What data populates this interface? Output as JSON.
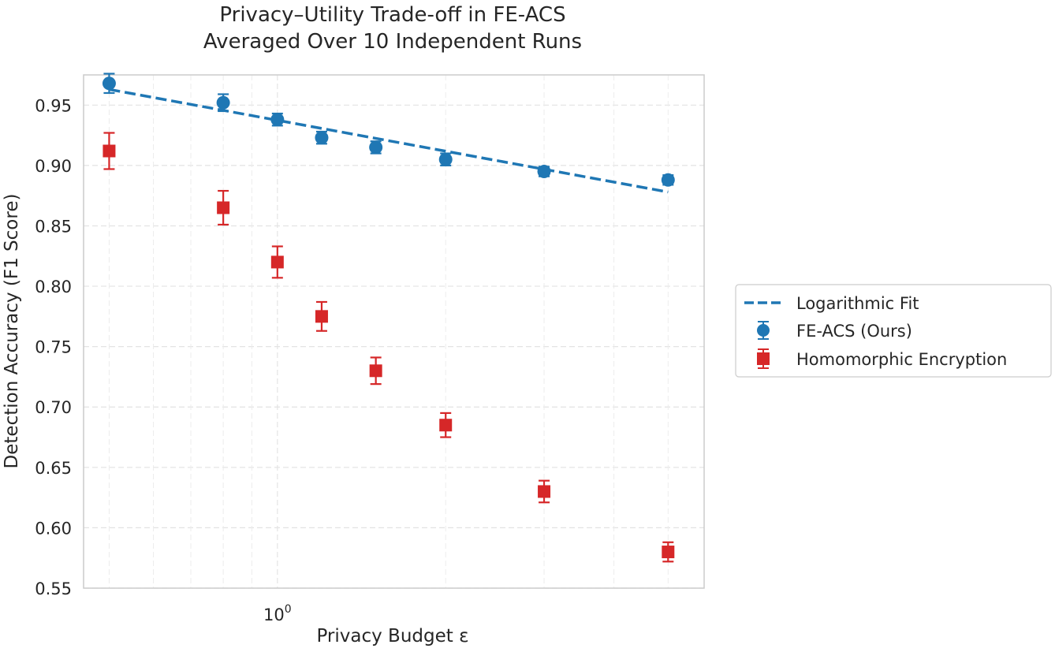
{
  "chart_data": {
    "type": "scatter",
    "title_lines": [
      "Privacy–Utility Trade-off in FE-ACS",
      "Averaged Over 10 Independent Runs"
    ],
    "xlabel": "Privacy Budget ε",
    "ylabel": "Detection Accuracy (F1 Score)",
    "xscale": "log",
    "xlim": [
      0.45,
      5.8
    ],
    "ylim": [
      0.55,
      0.975
    ],
    "grid": true,
    "legend_position": "right-outside",
    "y_ticks": [
      0.55,
      0.6,
      0.65,
      0.7,
      0.75,
      0.8,
      0.85,
      0.9,
      0.95
    ],
    "y_tick_labels": [
      "0.55",
      "0.60",
      "0.65",
      "0.70",
      "0.75",
      "0.80",
      "0.85",
      "0.90",
      "0.95"
    ],
    "x_major_tick": {
      "value": 1.0,
      "base": "10",
      "exp": "0"
    },
    "x_minor_ticks": [
      0.5,
      0.6,
      0.7,
      0.8,
      0.9,
      2,
      3,
      4,
      5
    ],
    "x": [
      0.5,
      0.8,
      1.0,
      1.2,
      1.5,
      2.0,
      3.0,
      5.0
    ],
    "series": [
      {
        "name": "FE-ACS (Ours)",
        "marker": "circle",
        "color": "#1f77b4",
        "values": [
          0.968,
          0.952,
          0.938,
          0.923,
          0.915,
          0.905,
          0.895,
          0.888
        ],
        "errors": [
          0.008,
          0.007,
          0.005,
          0.005,
          0.005,
          0.005,
          0.004,
          0.004
        ]
      },
      {
        "name": "Homomorphic Encryption",
        "marker": "square",
        "color": "#d62728",
        "values": [
          0.912,
          0.865,
          0.82,
          0.775,
          0.73,
          0.685,
          0.63,
          0.58
        ],
        "errors": [
          0.015,
          0.014,
          0.013,
          0.012,
          0.011,
          0.01,
          0.009,
          0.008
        ]
      }
    ],
    "fit": {
      "name": "Logarithmic Fit",
      "color": "#1f77b4",
      "style": "dashed",
      "x": [
        0.5,
        5.0
      ],
      "y": [
        0.963,
        0.878
      ]
    }
  }
}
